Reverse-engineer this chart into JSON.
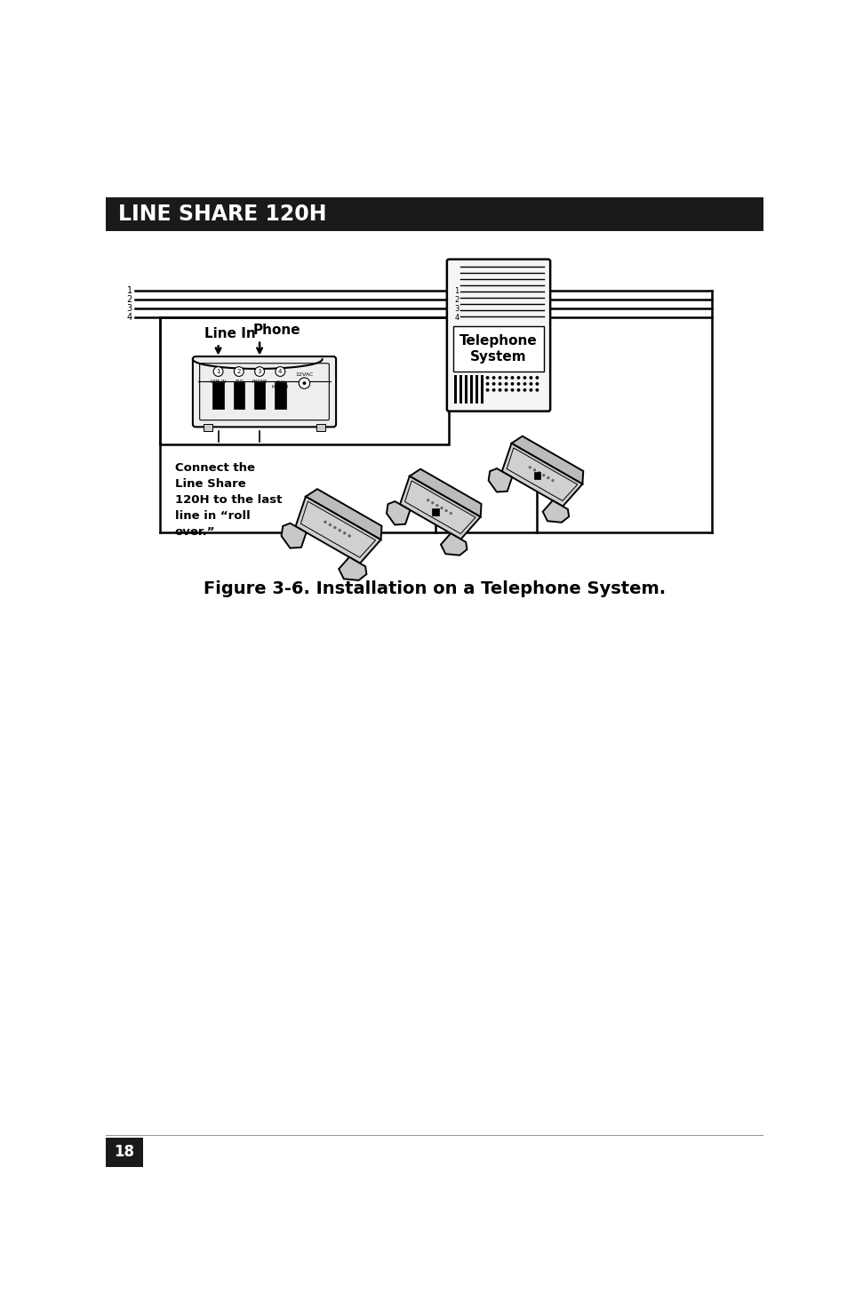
{
  "page_bg": "#ffffff",
  "header_bg": "#1a1a1a",
  "header_text": "LINE SHARE 120H",
  "header_text_color": "#ffffff",
  "figure_caption": "Figure 3-6. Installation on a Telephone System.",
  "footer_page_num": "18",
  "footer_bg": "#1a1a1a",
  "footer_text_color": "#ffffff",
  "label_linein": "Line In",
  "label_phone": "Phone",
  "label_tel_system_line1": "Telephone",
  "label_tel_system_line2": "System",
  "label_connect": "Connect the\nLine Share\n120H to the last\nline in “roll\nover.”",
  "lines_1234_labels": [
    "1",
    "2",
    "3",
    "4"
  ]
}
